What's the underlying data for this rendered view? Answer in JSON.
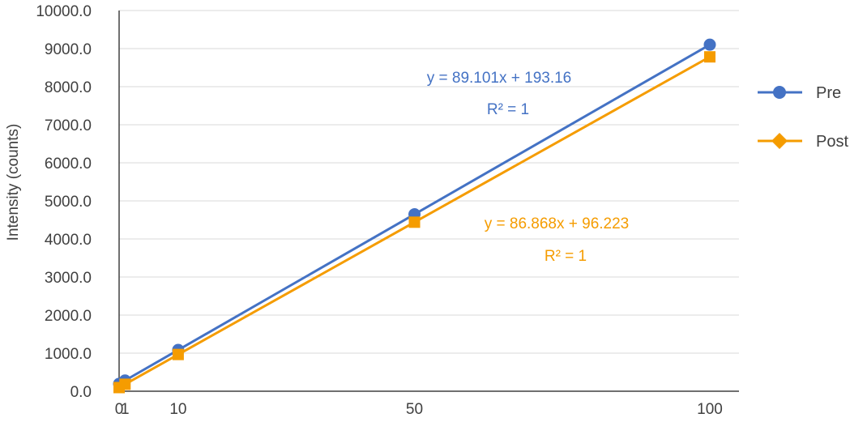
{
  "chart_data": {
    "type": "line",
    "title": "",
    "xlabel": "",
    "ylabel": "Intensity (counts)",
    "x": [
      0,
      1,
      10,
      50,
      100
    ],
    "xticks": [
      0,
      1,
      10,
      50,
      100
    ],
    "xtick_labels": [
      "0",
      "1",
      "10",
      "50",
      "100"
    ],
    "xlim": [
      0,
      105
    ],
    "ylim": [
      0,
      10000
    ],
    "yticks": [
      0,
      1000,
      2000,
      3000,
      4000,
      5000,
      6000,
      7000,
      8000,
      9000,
      10000
    ],
    "ytick_labels": [
      "0.0",
      "1000.0",
      "2000.0",
      "3000.0",
      "4000.0",
      "5000.0",
      "6000.0",
      "7000.0",
      "8000.0",
      "9000.0",
      "10000.0"
    ],
    "grid": "horizontal",
    "legend": "right",
    "series": [
      {
        "name": "Pre",
        "color": "#4472C4",
        "marker": "circle",
        "legend_marker": "circle",
        "values": [
          193,
          282,
          1084,
          4648,
          9103
        ],
        "trendline": {
          "equation": "y = 89.101x + 193.16",
          "r2": "R² = 1"
        }
      },
      {
        "name": "Post",
        "color": "#F59C00",
        "marker": "square",
        "legend_marker": "diamond",
        "values": [
          96,
          183,
          965,
          4440,
          8783
        ],
        "trendline": {
          "equation": "y = 86.868x + 96.223",
          "r2": "R² = 1"
        }
      }
    ]
  }
}
